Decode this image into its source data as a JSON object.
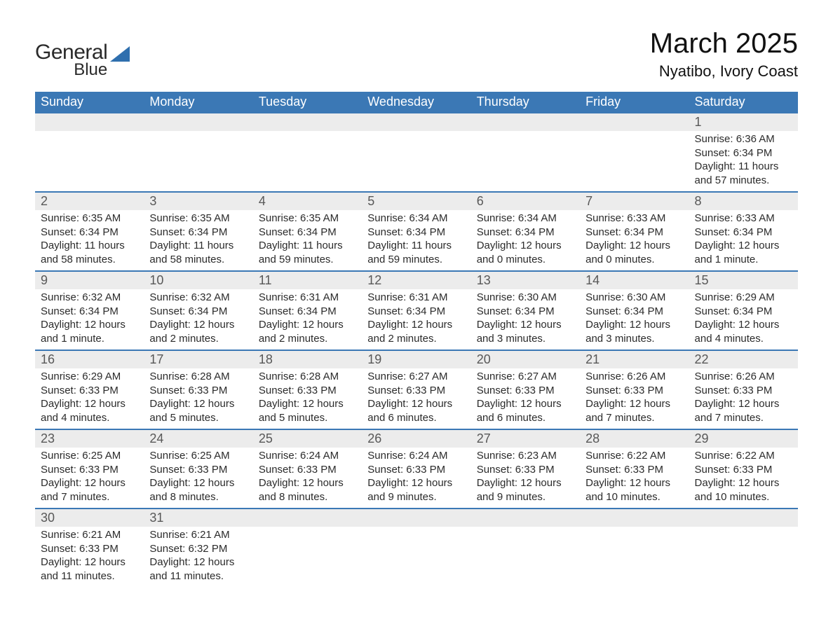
{
  "logo": {
    "text1": "General",
    "text2": "Blue",
    "shape_color": "#2f6fae"
  },
  "header": {
    "month_title": "March 2025",
    "location": "Nyatibo, Ivory Coast"
  },
  "colors": {
    "header_bg": "#3b78b5",
    "header_text": "#ffffff",
    "daynum_bg": "#ececec",
    "row_border": "#3b78b5",
    "text": "#2b2b2b",
    "daynum_text": "#585858"
  },
  "day_headers": [
    "Sunday",
    "Monday",
    "Tuesday",
    "Wednesday",
    "Thursday",
    "Friday",
    "Saturday"
  ],
  "weeks": [
    {
      "days": [
        null,
        null,
        null,
        null,
        null,
        null,
        {
          "n": "1",
          "sunrise": "Sunrise: 6:36 AM",
          "sunset": "Sunset: 6:34 PM",
          "daylight1": "Daylight: 11 hours",
          "daylight2": "and 57 minutes."
        }
      ]
    },
    {
      "days": [
        {
          "n": "2",
          "sunrise": "Sunrise: 6:35 AM",
          "sunset": "Sunset: 6:34 PM",
          "daylight1": "Daylight: 11 hours",
          "daylight2": "and 58 minutes."
        },
        {
          "n": "3",
          "sunrise": "Sunrise: 6:35 AM",
          "sunset": "Sunset: 6:34 PM",
          "daylight1": "Daylight: 11 hours",
          "daylight2": "and 58 minutes."
        },
        {
          "n": "4",
          "sunrise": "Sunrise: 6:35 AM",
          "sunset": "Sunset: 6:34 PM",
          "daylight1": "Daylight: 11 hours",
          "daylight2": "and 59 minutes."
        },
        {
          "n": "5",
          "sunrise": "Sunrise: 6:34 AM",
          "sunset": "Sunset: 6:34 PM",
          "daylight1": "Daylight: 11 hours",
          "daylight2": "and 59 minutes."
        },
        {
          "n": "6",
          "sunrise": "Sunrise: 6:34 AM",
          "sunset": "Sunset: 6:34 PM",
          "daylight1": "Daylight: 12 hours",
          "daylight2": "and 0 minutes."
        },
        {
          "n": "7",
          "sunrise": "Sunrise: 6:33 AM",
          "sunset": "Sunset: 6:34 PM",
          "daylight1": "Daylight: 12 hours",
          "daylight2": "and 0 minutes."
        },
        {
          "n": "8",
          "sunrise": "Sunrise: 6:33 AM",
          "sunset": "Sunset: 6:34 PM",
          "daylight1": "Daylight: 12 hours",
          "daylight2": "and 1 minute."
        }
      ]
    },
    {
      "days": [
        {
          "n": "9",
          "sunrise": "Sunrise: 6:32 AM",
          "sunset": "Sunset: 6:34 PM",
          "daylight1": "Daylight: 12 hours",
          "daylight2": "and 1 minute."
        },
        {
          "n": "10",
          "sunrise": "Sunrise: 6:32 AM",
          "sunset": "Sunset: 6:34 PM",
          "daylight1": "Daylight: 12 hours",
          "daylight2": "and 2 minutes."
        },
        {
          "n": "11",
          "sunrise": "Sunrise: 6:31 AM",
          "sunset": "Sunset: 6:34 PM",
          "daylight1": "Daylight: 12 hours",
          "daylight2": "and 2 minutes."
        },
        {
          "n": "12",
          "sunrise": "Sunrise: 6:31 AM",
          "sunset": "Sunset: 6:34 PM",
          "daylight1": "Daylight: 12 hours",
          "daylight2": "and 2 minutes."
        },
        {
          "n": "13",
          "sunrise": "Sunrise: 6:30 AM",
          "sunset": "Sunset: 6:34 PM",
          "daylight1": "Daylight: 12 hours",
          "daylight2": "and 3 minutes."
        },
        {
          "n": "14",
          "sunrise": "Sunrise: 6:30 AM",
          "sunset": "Sunset: 6:34 PM",
          "daylight1": "Daylight: 12 hours",
          "daylight2": "and 3 minutes."
        },
        {
          "n": "15",
          "sunrise": "Sunrise: 6:29 AM",
          "sunset": "Sunset: 6:34 PM",
          "daylight1": "Daylight: 12 hours",
          "daylight2": "and 4 minutes."
        }
      ]
    },
    {
      "days": [
        {
          "n": "16",
          "sunrise": "Sunrise: 6:29 AM",
          "sunset": "Sunset: 6:33 PM",
          "daylight1": "Daylight: 12 hours",
          "daylight2": "and 4 minutes."
        },
        {
          "n": "17",
          "sunrise": "Sunrise: 6:28 AM",
          "sunset": "Sunset: 6:33 PM",
          "daylight1": "Daylight: 12 hours",
          "daylight2": "and 5 minutes."
        },
        {
          "n": "18",
          "sunrise": "Sunrise: 6:28 AM",
          "sunset": "Sunset: 6:33 PM",
          "daylight1": "Daylight: 12 hours",
          "daylight2": "and 5 minutes."
        },
        {
          "n": "19",
          "sunrise": "Sunrise: 6:27 AM",
          "sunset": "Sunset: 6:33 PM",
          "daylight1": "Daylight: 12 hours",
          "daylight2": "and 6 minutes."
        },
        {
          "n": "20",
          "sunrise": "Sunrise: 6:27 AM",
          "sunset": "Sunset: 6:33 PM",
          "daylight1": "Daylight: 12 hours",
          "daylight2": "and 6 minutes."
        },
        {
          "n": "21",
          "sunrise": "Sunrise: 6:26 AM",
          "sunset": "Sunset: 6:33 PM",
          "daylight1": "Daylight: 12 hours",
          "daylight2": "and 7 minutes."
        },
        {
          "n": "22",
          "sunrise": "Sunrise: 6:26 AM",
          "sunset": "Sunset: 6:33 PM",
          "daylight1": "Daylight: 12 hours",
          "daylight2": "and 7 minutes."
        }
      ]
    },
    {
      "days": [
        {
          "n": "23",
          "sunrise": "Sunrise: 6:25 AM",
          "sunset": "Sunset: 6:33 PM",
          "daylight1": "Daylight: 12 hours",
          "daylight2": "and 7 minutes."
        },
        {
          "n": "24",
          "sunrise": "Sunrise: 6:25 AM",
          "sunset": "Sunset: 6:33 PM",
          "daylight1": "Daylight: 12 hours",
          "daylight2": "and 8 minutes."
        },
        {
          "n": "25",
          "sunrise": "Sunrise: 6:24 AM",
          "sunset": "Sunset: 6:33 PM",
          "daylight1": "Daylight: 12 hours",
          "daylight2": "and 8 minutes."
        },
        {
          "n": "26",
          "sunrise": "Sunrise: 6:24 AM",
          "sunset": "Sunset: 6:33 PM",
          "daylight1": "Daylight: 12 hours",
          "daylight2": "and 9 minutes."
        },
        {
          "n": "27",
          "sunrise": "Sunrise: 6:23 AM",
          "sunset": "Sunset: 6:33 PM",
          "daylight1": "Daylight: 12 hours",
          "daylight2": "and 9 minutes."
        },
        {
          "n": "28",
          "sunrise": "Sunrise: 6:22 AM",
          "sunset": "Sunset: 6:33 PM",
          "daylight1": "Daylight: 12 hours",
          "daylight2": "and 10 minutes."
        },
        {
          "n": "29",
          "sunrise": "Sunrise: 6:22 AM",
          "sunset": "Sunset: 6:33 PM",
          "daylight1": "Daylight: 12 hours",
          "daylight2": "and 10 minutes."
        }
      ]
    },
    {
      "days": [
        {
          "n": "30",
          "sunrise": "Sunrise: 6:21 AM",
          "sunset": "Sunset: 6:33 PM",
          "daylight1": "Daylight: 12 hours",
          "daylight2": "and 11 minutes."
        },
        {
          "n": "31",
          "sunrise": "Sunrise: 6:21 AM",
          "sunset": "Sunset: 6:32 PM",
          "daylight1": "Daylight: 12 hours",
          "daylight2": "and 11 minutes."
        },
        null,
        null,
        null,
        null,
        null
      ]
    }
  ]
}
